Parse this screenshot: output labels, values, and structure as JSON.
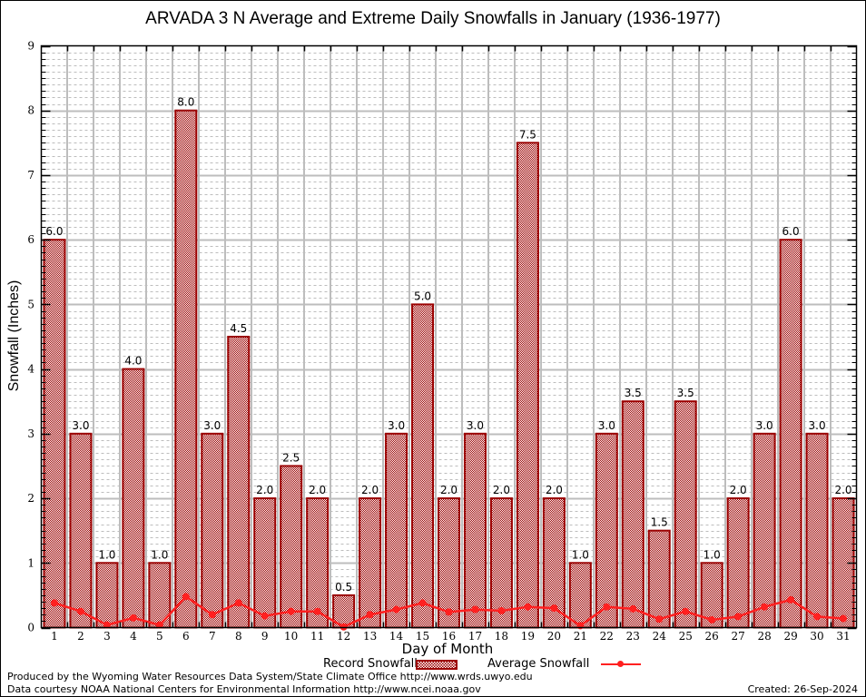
{
  "chart_data": {
    "type": "bar",
    "title": "ARVADA 3 N Average and Extreme Daily Snowfalls in January (1936-1977)",
    "xlabel": "Day of Month",
    "ylabel": "Snowfall (Inches)",
    "ylim": [
      0,
      9
    ],
    "yticks": [
      "0",
      "1",
      "2",
      "3",
      "4",
      "5",
      "6",
      "7",
      "8",
      "9"
    ],
    "grid": true,
    "legend_placement": "bottom-center",
    "categories": [
      "1",
      "2",
      "3",
      "4",
      "5",
      "6",
      "7",
      "8",
      "9",
      "10",
      "11",
      "12",
      "13",
      "14",
      "15",
      "16",
      "17",
      "18",
      "19",
      "20",
      "21",
      "22",
      "23",
      "24",
      "25",
      "26",
      "27",
      "28",
      "29",
      "30",
      "31"
    ],
    "series": [
      {
        "name": "Record Snowfall",
        "kind": "bar",
        "color": "#9b0000",
        "values": [
          6.0,
          3.0,
          1.0,
          4.0,
          1.0,
          8.0,
          3.0,
          4.5,
          2.0,
          2.5,
          2.0,
          0.5,
          2.0,
          3.0,
          5.0,
          2.0,
          3.0,
          2.0,
          7.5,
          2.0,
          1.0,
          3.0,
          3.5,
          1.5,
          3.5,
          1.0,
          2.0,
          3.0,
          6.0,
          3.0,
          2.0
        ],
        "labels": [
          "6.0",
          "3.0",
          "1.0",
          "4.0",
          "1.0",
          "8.0",
          "3.0",
          "4.5",
          "2.0",
          "2.5",
          "2.0",
          "0.5",
          "2.0",
          "3.0",
          "5.0",
          "2.0",
          "3.0",
          "2.0",
          "7.5",
          "2.0",
          "1.0",
          "3.0",
          "3.5",
          "1.5",
          "3.5",
          "1.0",
          "2.0",
          "3.0",
          "6.0",
          "3.0",
          "2.0"
        ]
      },
      {
        "name": "Average Snowfall",
        "kind": "line",
        "color": "#ff2020",
        "values": [
          0.38,
          0.25,
          0.04,
          0.15,
          0.04,
          0.48,
          0.2,
          0.38,
          0.18,
          0.25,
          0.25,
          0.01,
          0.2,
          0.28,
          0.38,
          0.24,
          0.28,
          0.26,
          0.32,
          0.3,
          0.03,
          0.32,
          0.29,
          0.13,
          0.25,
          0.12,
          0.17,
          0.32,
          0.43,
          0.17,
          0.14
        ]
      }
    ]
  },
  "legend": {
    "record_label": "Record Snowfall",
    "average_label": "Average Snowfall"
  },
  "footer": {
    "credit_line1": "Produced by the Wyoming Water Resources Data System/State Climate Office http://www.wrds.uwyo.edu",
    "credit_line2": "Data courtesy NOAA National Centers for Environmental Information http://www.ncei.noaa.gov",
    "created": "Created:  26-Sep-2024"
  }
}
